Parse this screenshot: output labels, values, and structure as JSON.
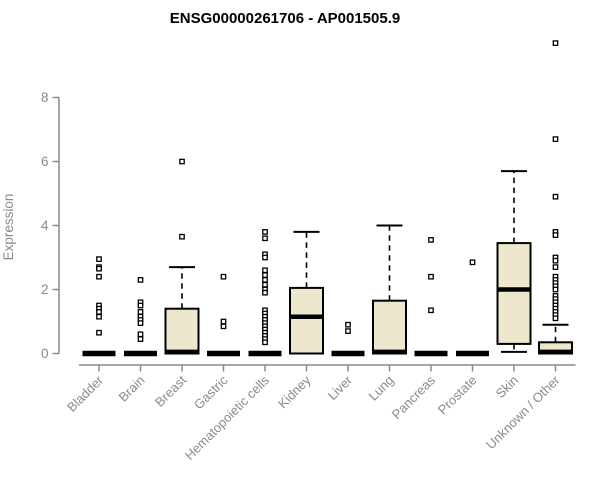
{
  "title": "ENSG00000261706 - AP001505.9",
  "colors": {
    "box_fill": "#EDE8CD",
    "box_stroke": "#000000",
    "axis": "#8a8a8a",
    "title": "#000000",
    "background": "#ffffff"
  },
  "chart_data": {
    "type": "boxplot",
    "title": "ENSG00000261706 - AP001505.9",
    "xlabel": "",
    "ylabel": "Expression",
    "ylim": [
      0,
      9.8
    ],
    "yticks": [
      0,
      2,
      4,
      6,
      8
    ],
    "grid": false,
    "legend": "none",
    "categories": [
      "Bladder",
      "Brain",
      "Breast",
      "Gastric",
      "Hematopoietic cells",
      "Kidney",
      "Liver",
      "Lung",
      "Pancreas",
      "Prostate",
      "Skin",
      "Unknown / Other"
    ],
    "series": [
      {
        "name": "Bladder",
        "q1": 0,
        "median": 0,
        "q3": 0,
        "whisker_low": 0,
        "whisker_high": 0,
        "outliers": [
          2.95,
          2.7,
          2.65,
          2.4,
          1.5,
          1.4,
          1.3,
          1.15,
          0.65
        ]
      },
      {
        "name": "Brain",
        "q1": 0,
        "median": 0,
        "q3": 0,
        "whisker_low": 0,
        "whisker_high": 0,
        "outliers": [
          2.3,
          1.6,
          1.5,
          1.3,
          1.15,
          1.05,
          0.95,
          0.6,
          0.45
        ]
      },
      {
        "name": "Breast",
        "q1": 0,
        "median": 0.05,
        "q3": 1.4,
        "whisker_low": 0,
        "whisker_high": 2.7,
        "outliers": [
          6.0,
          3.65
        ]
      },
      {
        "name": "Gastric",
        "q1": 0,
        "median": 0,
        "q3": 0,
        "whisker_low": 0,
        "whisker_high": 0,
        "outliers": [
          2.4,
          1.0,
          0.85
        ]
      },
      {
        "name": "Hematopoietic cells",
        "q1": 0,
        "median": 0,
        "q3": 0,
        "whisker_low": 0,
        "whisker_high": 0,
        "outliers": [
          3.8,
          3.6,
          3.1,
          3.0,
          2.6,
          2.45,
          2.3,
          2.15,
          2.0,
          1.9,
          1.35,
          1.25,
          1.15,
          1.05,
          0.95,
          0.85,
          0.75,
          0.65,
          0.55,
          0.45,
          0.35
        ]
      },
      {
        "name": "Kidney",
        "q1": 0,
        "median": 1.15,
        "q3": 2.05,
        "whisker_low": 0,
        "whisker_high": 3.8,
        "outliers": []
      },
      {
        "name": "Liver",
        "q1": 0,
        "median": 0,
        "q3": 0,
        "whisker_low": 0,
        "whisker_high": 0,
        "outliers": [
          0.9,
          0.7
        ]
      },
      {
        "name": "Lung",
        "q1": 0,
        "median": 0.05,
        "q3": 1.65,
        "whisker_low": 0,
        "whisker_high": 4.0,
        "outliers": []
      },
      {
        "name": "Pancreas",
        "q1": 0,
        "median": 0,
        "q3": 0,
        "whisker_low": 0,
        "whisker_high": 0,
        "outliers": [
          3.55,
          2.4,
          1.35
        ]
      },
      {
        "name": "Prostate",
        "q1": 0,
        "median": 0,
        "q3": 0,
        "whisker_low": 0,
        "whisker_high": 0,
        "outliers": [
          2.85
        ]
      },
      {
        "name": "Skin",
        "q1": 0.3,
        "median": 2.0,
        "q3": 3.45,
        "whisker_low": 0.05,
        "whisker_high": 5.7,
        "outliers": []
      },
      {
        "name": "Unknown / Other",
        "q1": 0,
        "median": 0.05,
        "q3": 0.35,
        "whisker_low": 0,
        "whisker_high": 0.9,
        "outliers": [
          9.7,
          6.7,
          4.9,
          3.8,
          3.7,
          3.0,
          2.9,
          2.7,
          2.4,
          2.3,
          2.2,
          2.1,
          2.0,
          1.8,
          1.7,
          1.6,
          1.5,
          1.4,
          1.3,
          1.2,
          1.1
        ]
      }
    ]
  }
}
